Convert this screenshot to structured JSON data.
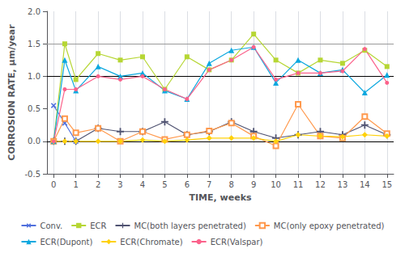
{
  "chart_data": {
    "type": "line",
    "xlabel": "TIME, weeks",
    "ylabel": "CORROSION RATE, μm/year",
    "xlim": [
      -0.3,
      15.3
    ],
    "ylim": [
      -0.5,
      2.0
    ],
    "xticks": [
      0,
      1,
      2,
      3,
      4,
      5,
      6,
      7,
      8,
      9,
      10,
      11,
      12,
      13,
      14,
      15
    ],
    "yticks": [
      -0.5,
      {
        "value": 0,
        "label": "0.0"
      },
      0.5,
      {
        "value": 1,
        "label": "1.0"
      },
      1.5,
      {
        "value": 2,
        "label": "2.0"
      }
    ],
    "grid": "x",
    "legend": "bottom",
    "hlines": [
      {
        "value": 0.0,
        "color": "#000000"
      },
      {
        "value": 1.0,
        "color": "#000000"
      },
      {
        "value": 1.5,
        "color": "#999999"
      }
    ],
    "series": [
      {
        "name": "Conv.",
        "marker": "x",
        "x": [
          0,
          0.5,
          1
        ],
        "values": [
          0.55,
          0.28,
          0.0
        ]
      },
      {
        "name": "ECR",
        "marker": "square",
        "x": [
          0,
          0.5,
          1,
          2,
          3,
          4,
          5,
          6,
          7,
          8,
          9,
          10,
          11,
          12,
          13,
          14,
          15
        ],
        "values": [
          0.0,
          1.5,
          0.95,
          1.35,
          1.25,
          1.3,
          0.8,
          1.3,
          1.1,
          1.25,
          1.65,
          1.25,
          1.05,
          1.25,
          1.2,
          1.4,
          1.15
        ]
      },
      {
        "name": "MC(both layers penetrated)",
        "marker": "plus",
        "x": [
          0,
          0.5,
          1,
          2,
          3,
          4,
          5,
          6,
          7,
          8,
          9,
          10,
          11,
          12,
          13,
          14,
          15
        ],
        "values": [
          0.0,
          0.0,
          0.0,
          0.2,
          0.15,
          0.15,
          0.3,
          0.1,
          0.15,
          0.3,
          0.15,
          0.05,
          0.1,
          0.15,
          0.1,
          0.25,
          0.1
        ]
      },
      {
        "name": "MC(only epoxy penetrated)",
        "marker": "square_open",
        "x": [
          0,
          0.5,
          1,
          2,
          3,
          4,
          5,
          6,
          7,
          8,
          9,
          10,
          11,
          12,
          13,
          14,
          15
        ],
        "values": [
          0.0,
          0.35,
          0.13,
          0.2,
          0.0,
          0.15,
          0.03,
          0.1,
          0.16,
          0.28,
          0.08,
          -0.07,
          0.57,
          0.08,
          0.05,
          0.38,
          0.12
        ]
      },
      {
        "name": "ECR(Dupont)",
        "marker": "triangle",
        "x": [
          0,
          0.5,
          1,
          2,
          3,
          4,
          5,
          6,
          7,
          8,
          9,
          10,
          11,
          12,
          13,
          14,
          15
        ],
        "values": [
          0.0,
          1.25,
          0.78,
          1.15,
          1.0,
          1.05,
          0.78,
          0.65,
          1.2,
          1.4,
          1.45,
          0.9,
          1.25,
          1.05,
          1.1,
          0.75,
          1.02
        ]
      },
      {
        "name": "ECR(Chromate)",
        "marker": "diamond",
        "x": [
          0,
          0.5,
          1,
          2,
          3,
          4,
          5,
          6,
          7,
          8,
          9,
          10,
          11,
          12,
          13,
          14,
          15
        ],
        "values": [
          0.0,
          0.0,
          0.0,
          0.0,
          0.0,
          0.02,
          0.0,
          0.02,
          0.05,
          0.05,
          0.05,
          0.0,
          0.1,
          0.08,
          0.07,
          0.1,
          0.08
        ]
      },
      {
        "name": "ECR(Valspar)",
        "marker": "circle",
        "x": [
          0,
          0.5,
          1,
          2,
          3,
          4,
          5,
          6,
          7,
          8,
          9,
          10,
          11,
          12,
          13,
          14,
          15
        ],
        "values": [
          0.0,
          0.8,
          0.8,
          1.0,
          0.95,
          1.0,
          0.8,
          0.65,
          1.1,
          1.25,
          1.45,
          0.95,
          1.05,
          1.05,
          1.08,
          1.42,
          0.9
        ]
      }
    ]
  }
}
